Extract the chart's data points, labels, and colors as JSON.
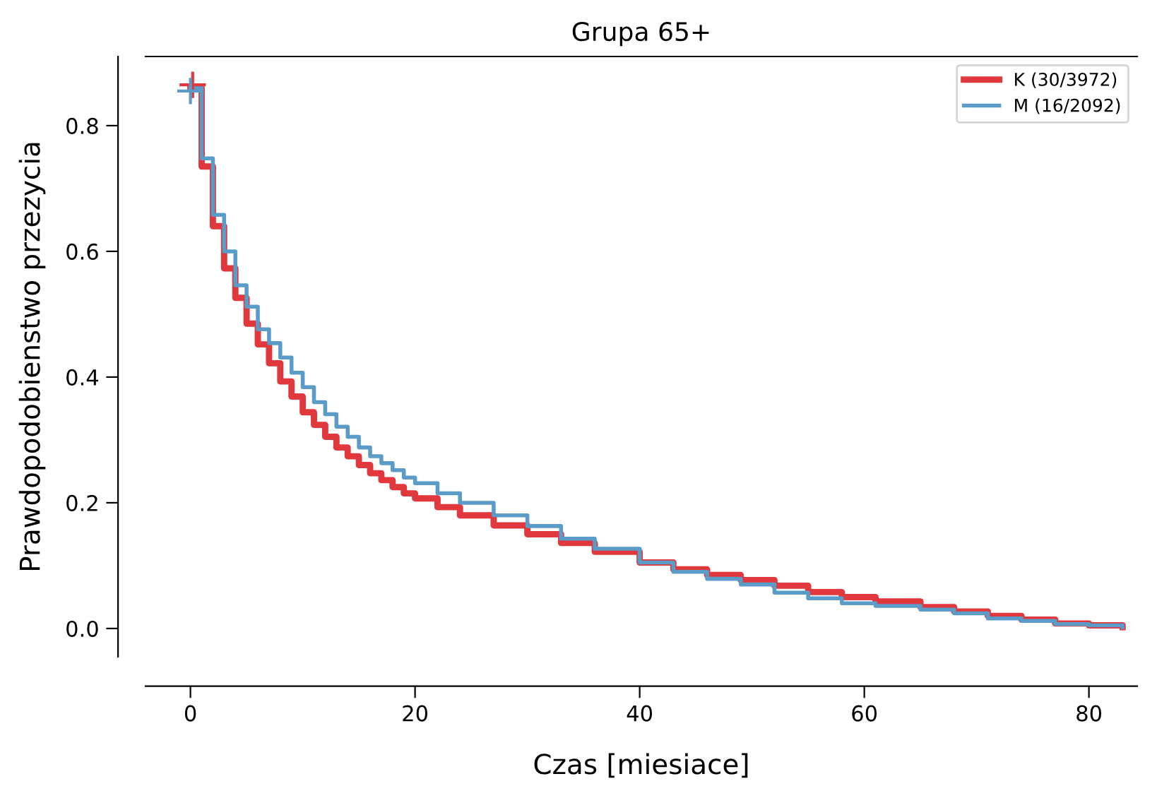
{
  "chart_data": {
    "type": "step",
    "title": "Grupa 65+",
    "xlabel": "Czas [miesiace]",
    "ylabel": "Prawdopodobienstwo przezycia",
    "xlim": [
      -4,
      84.3
    ],
    "ylim": [
      -0.045,
      0.91
    ],
    "xticks": [
      0,
      20,
      40,
      60,
      80
    ],
    "yticks": [
      {
        "value": 0,
        "label": "0.0"
      },
      0.2,
      0.4,
      0.6,
      0.8
    ],
    "grid": false,
    "legend": "top right",
    "series": [
      {
        "name": "K (30/3972)",
        "color": "#e0383c",
        "x": [
          0,
          1,
          2,
          3,
          4,
          5,
          6,
          7,
          8,
          9,
          10,
          11,
          12,
          13,
          14,
          15,
          16,
          17,
          18,
          19,
          20,
          22,
          24,
          27,
          30,
          33,
          36,
          40,
          43,
          46,
          49,
          52,
          55,
          58,
          61,
          65,
          68,
          71,
          74,
          77,
          80,
          83
        ],
        "values": [
          0.86,
          0.735,
          0.64,
          0.573,
          0.526,
          0.485,
          0.452,
          0.422,
          0.393,
          0.369,
          0.344,
          0.324,
          0.305,
          0.288,
          0.274,
          0.26,
          0.247,
          0.236,
          0.225,
          0.215,
          0.207,
          0.193,
          0.18,
          0.164,
          0.15,
          0.136,
          0.122,
          0.105,
          0.094,
          0.085,
          0.077,
          0.068,
          0.058,
          0.05,
          0.043,
          0.034,
          0.027,
          0.02,
          0.014,
          0.008,
          0.005,
          0.002
        ]
      },
      {
        "name": "M (16/2092)",
        "color": "#5b9bc8",
        "x": [
          0,
          1,
          2,
          3,
          4,
          5,
          6,
          7,
          8,
          9,
          10,
          11,
          12,
          13,
          14,
          15,
          16,
          17,
          18,
          19,
          20,
          22,
          24,
          27,
          30,
          33,
          36,
          40,
          43,
          46,
          49,
          52,
          55,
          58,
          61,
          65,
          68,
          71,
          74,
          77,
          80,
          83
        ],
        "values": [
          0.86,
          0.748,
          0.658,
          0.6,
          0.546,
          0.512,
          0.476,
          0.454,
          0.431,
          0.407,
          0.384,
          0.36,
          0.341,
          0.321,
          0.305,
          0.288,
          0.274,
          0.263,
          0.252,
          0.24,
          0.231,
          0.215,
          0.2,
          0.18,
          0.163,
          0.143,
          0.127,
          0.105,
          0.09,
          0.079,
          0.07,
          0.057,
          0.048,
          0.04,
          0.036,
          0.03,
          0.024,
          0.016,
          0.012,
          0.007,
          0.005,
          0.002
        ]
      },
      {
        "type": "scatter",
        "marker": "cross",
        "color": "#e0383c",
        "x": [
          0.2
        ],
        "values": [
          0.865
        ]
      },
      {
        "type": "scatter",
        "marker": "cross",
        "color": "#5b9bc8",
        "x": [
          0
        ],
        "values": [
          0.855
        ]
      }
    ]
  }
}
